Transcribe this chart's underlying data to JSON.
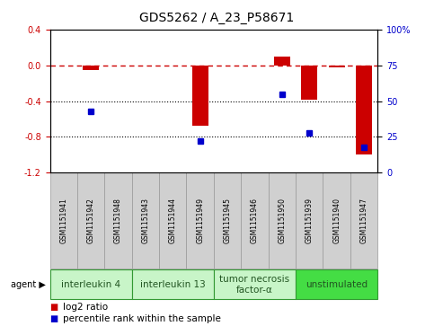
{
  "title": "GDS5262 / A_23_P58671",
  "samples": [
    "GSM1151941",
    "GSM1151942",
    "GSM1151948",
    "GSM1151943",
    "GSM1151944",
    "GSM1151949",
    "GSM1151945",
    "GSM1151946",
    "GSM1151950",
    "GSM1151939",
    "GSM1151940",
    "GSM1151947"
  ],
  "log2_ratio": [
    0.0,
    -0.05,
    0.0,
    0.0,
    0.0,
    -0.68,
    0.0,
    0.0,
    0.1,
    -0.38,
    -0.02,
    -1.0
  ],
  "percentile_rank": [
    null,
    43,
    null,
    null,
    null,
    22,
    null,
    null,
    55,
    28,
    null,
    18
  ],
  "agents": [
    {
      "label": "interleukin 4",
      "start": 0,
      "end": 2,
      "color": "#c8f5c8"
    },
    {
      "label": "interleukin 13",
      "start": 3,
      "end": 5,
      "color": "#c8f5c8"
    },
    {
      "label": "tumor necrosis\nfactor-α",
      "start": 6,
      "end": 8,
      "color": "#c8f5c8"
    },
    {
      "label": "unstimulated",
      "start": 9,
      "end": 11,
      "color": "#44dd44"
    }
  ],
  "ylim_left": [
    -1.2,
    0.4
  ],
  "ylim_right": [
    0,
    100
  ],
  "yticks_left": [
    -1.2,
    -0.8,
    -0.4,
    0.0,
    0.4
  ],
  "yticks_right": [
    0,
    25,
    50,
    75,
    100
  ],
  "bar_color": "#cc0000",
  "dot_color": "#0000cc",
  "dashed_line_color": "#cc0000",
  "bg_color": "#ffffff",
  "plot_bg_color": "#ffffff",
  "grid_color": "#000000",
  "title_fontsize": 10,
  "tick_fontsize": 7,
  "agent_fontsize": 7.5,
  "legend_fontsize": 7.5,
  "sample_fontsize": 5.5
}
